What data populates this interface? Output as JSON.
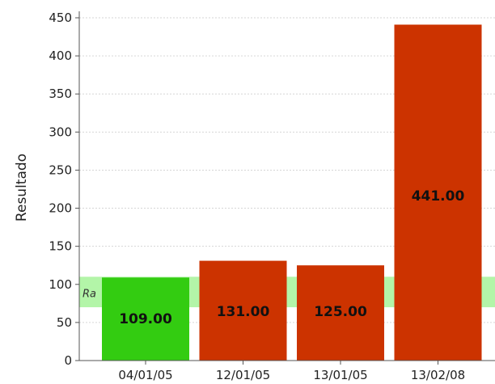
{
  "chart_data": {
    "type": "bar",
    "ylabel": "Resultado",
    "categories": [
      "04/01/05",
      "12/01/05",
      "13/01/05",
      "13/02/08"
    ],
    "values": [
      109,
      131,
      125,
      441
    ],
    "value_labels": [
      "109.00",
      "131.00",
      "125.00",
      "441.00"
    ],
    "bar_colors": [
      "#33cc11",
      "#cc3300",
      "#cc3300",
      "#cc3300"
    ],
    "ylim": [
      0,
      450
    ],
    "yticks": [
      0,
      50,
      100,
      150,
      200,
      250,
      300,
      350,
      400,
      450
    ],
    "grid": true,
    "reference_band": {
      "label": "Ra",
      "from": 70,
      "to": 110,
      "color": "#b3f5a8"
    }
  }
}
